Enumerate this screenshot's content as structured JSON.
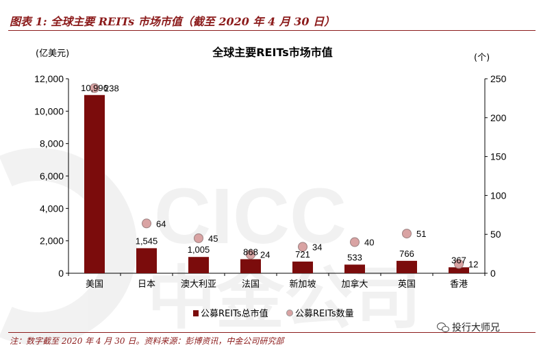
{
  "figure_title": "图表 1: 全球主要 REITs 市场市值（截至 2020 年 4 月 30 日）",
  "footnote": "注：数字截至 2020 年 4 月 30 日。资料来源：彭博资讯，中金公司研究部",
  "watermark": "CICC 中金公司",
  "wechat_label": "投行大师兄",
  "chart_data": {
    "type": "bar",
    "title": "全球主要REITs市场市值",
    "left_unit": "(亿美元)",
    "right_unit": "(个)",
    "categories": [
      "美国",
      "日本",
      "澳大利亚",
      "法国",
      "新加坡",
      "加拿大",
      "英国",
      "香港"
    ],
    "series": [
      {
        "name": "公募REITs总市值",
        "type": "bar",
        "axis": "left",
        "values": [
          10996,
          1545,
          1005,
          868,
          721,
          533,
          766,
          367
        ],
        "labels": [
          "10,996",
          "1,545",
          "1,005",
          "868",
          "721",
          "533",
          "766",
          "367"
        ],
        "color": "#7b0c0c"
      },
      {
        "name": "公募REITs数量",
        "type": "scatter",
        "axis": "right",
        "values": [
          238,
          64,
          45,
          24,
          34,
          40,
          51,
          12
        ],
        "labels": [
          "238",
          "64",
          "45",
          "24",
          "34",
          "40",
          "51",
          "12"
        ],
        "color": "#d9a3a3"
      }
    ],
    "ylim": [
      0,
      12000
    ],
    "y_ticks": [
      "0",
      "2,000",
      "4,000",
      "6,000",
      "8,000",
      "10,000",
      "12,000"
    ],
    "y2lim": [
      0,
      250
    ],
    "y2_ticks": [
      "0",
      "50",
      "100",
      "150",
      "200",
      "250"
    ],
    "grid": false,
    "legend_position": "bottom-center"
  }
}
